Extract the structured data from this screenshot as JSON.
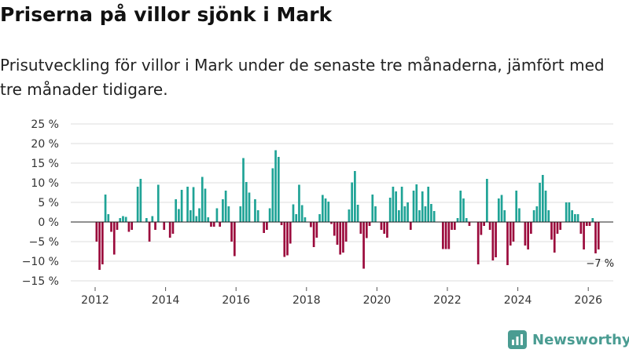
{
  "title": "Priserna på villor sjönk i Mark",
  "subtitle": "Prisutveckling för villor i Mark under de senaste tre månaderna, jämfört med tre månader tidigare.",
  "brand": "Newsworthy",
  "colors": {
    "positive": "#1fa396",
    "negative": "#9b0a3c",
    "grid": "#dddddd",
    "brand": "#4a9c92"
  },
  "chart_data": {
    "type": "bar",
    "title": "Priserna på villor sjönk i Mark",
    "xlabel": "",
    "ylabel": "",
    "ylim": [
      -15,
      25
    ],
    "yticks": [
      -15,
      -10,
      -5,
      0,
      5,
      10,
      15,
      20,
      25
    ],
    "ytick_labels": [
      "−15 %",
      "−10 %",
      "−5 %",
      "0 %",
      "5 %",
      "10 %",
      "15 %",
      "20 %",
      "25 %"
    ],
    "xticks": [
      2012,
      2014,
      2016,
      2018,
      2020,
      2022,
      2024,
      2026
    ],
    "x_start": 2012.0,
    "step": 0.08333,
    "annotation": "−7 %",
    "values": [
      -5,
      -12.2,
      -10.8,
      7,
      2,
      -2.5,
      -8.3,
      -2,
      1,
      1.5,
      1.3,
      -2.5,
      -2,
      0,
      9,
      11,
      0,
      1,
      -5,
      1.5,
      -2,
      9.5,
      0,
      -2,
      0,
      -4,
      -3,
      5.8,
      3.3,
      8.2,
      0,
      9,
      3,
      8.9,
      1.5,
      3.5,
      11.5,
      8.5,
      1.2,
      -1.2,
      -1.2,
      3.5,
      -1.2,
      5.8,
      8,
      4,
      -5,
      -8.7,
      0,
      4,
      16.3,
      10.2,
      7.5,
      0,
      5.8,
      3,
      0,
      -2.8,
      -2,
      3.5,
      13.7,
      18.3,
      16.6,
      -0.8,
      -8.9,
      -8.5,
      -5.5,
      4.5,
      2,
      9.5,
      4.3,
      1.2,
      0,
      -1.3,
      -6.4,
      -4,
      2,
      6.9,
      6,
      5.2,
      -0.5,
      -3.5,
      -5.8,
      -8.3,
      -7.8,
      -5,
      3.2,
      10.1,
      13,
      4.4,
      -3,
      -11.9,
      -4.1,
      -1,
      7,
      4,
      0,
      -2,
      -3,
      -4,
      6.2,
      9,
      7.8,
      3,
      9,
      4,
      5,
      -2,
      8,
      9.6,
      3,
      7.8,
      4,
      9,
      4.6,
      2.8,
      0,
      0,
      -6.9,
      -6.9,
      -6.9,
      -2,
      -2,
      1,
      8,
      6,
      1,
      -1,
      0,
      0,
      -10.8,
      -3.3,
      -1,
      11,
      -2,
      -9.8,
      -9,
      6,
      6.9,
      3,
      -11,
      -6,
      -5,
      8,
      3.5,
      0,
      -6,
      -7,
      -3,
      3,
      4,
      10,
      12,
      8,
      3,
      -4.5,
      -7.8,
      -3,
      -2,
      0,
      5,
      5,
      3,
      2,
      2,
      -3,
      -7,
      -1,
      -1,
      1,
      -8,
      -7
    ]
  }
}
